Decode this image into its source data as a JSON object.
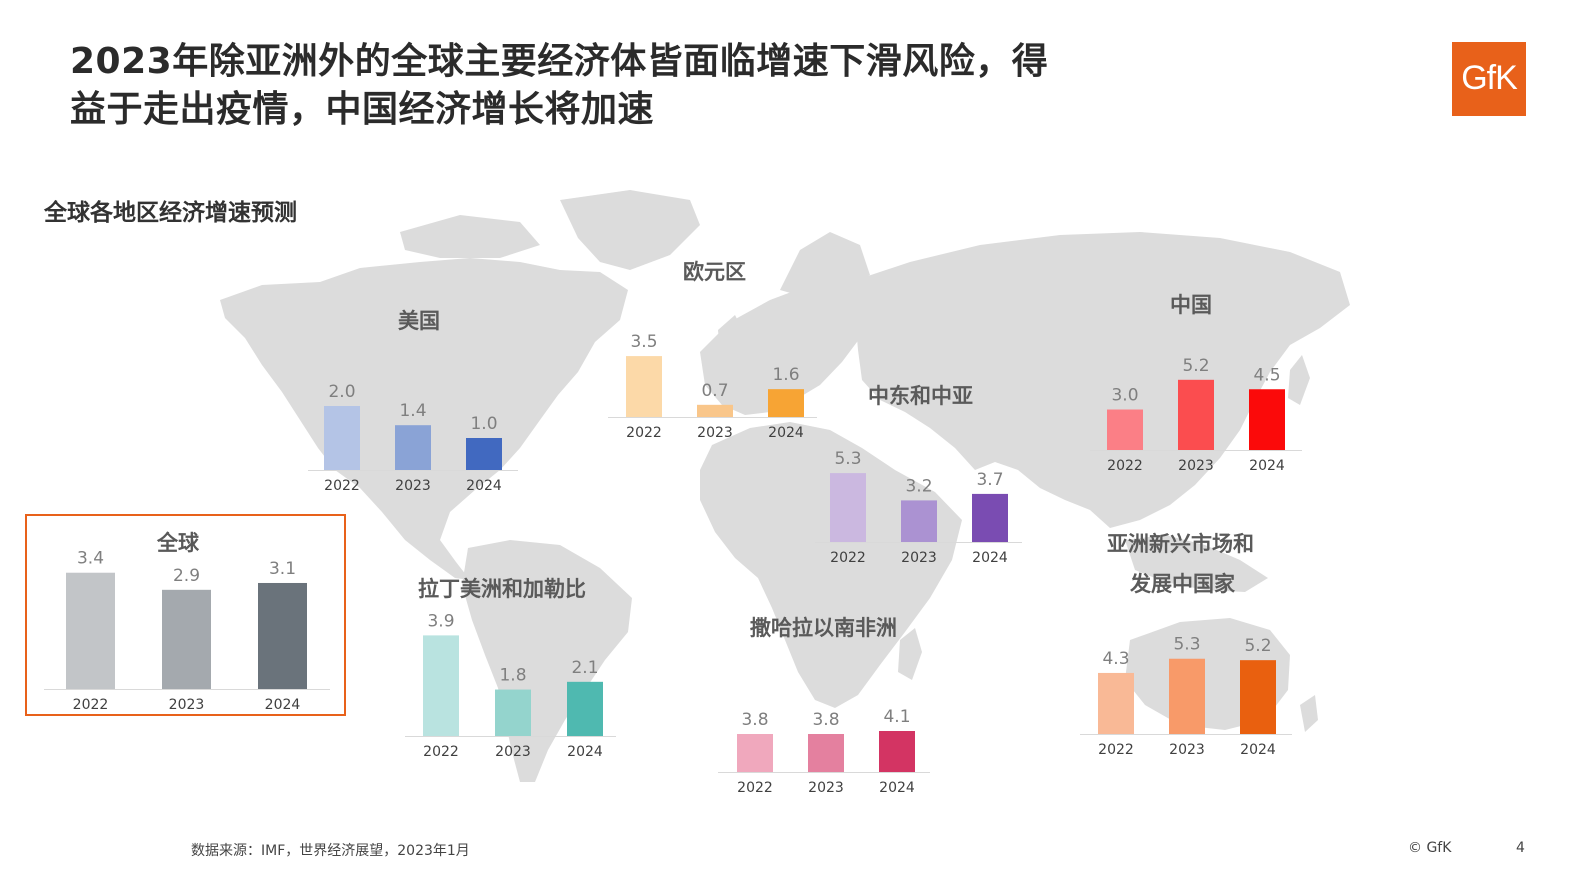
{
  "header": {
    "title_line1": "2023年除亚洲外的全球主要经济体皆面临增速下滑风险，得",
    "title_line2": "益于走出疫情，中国经济增长将加速",
    "logo_text": "GfK"
  },
  "subtitle": "全球各地区经济增速预测",
  "footer": {
    "source": "数据来源：IMF，世界经济展望，2023年1月",
    "copyright": "© GfK",
    "page_number": "4"
  },
  "chart_data": [
    {
      "id": "global",
      "type": "bar",
      "title": "全球",
      "categories": [
        "2022",
        "2023",
        "2024"
      ],
      "values": [
        3.4,
        2.9,
        3.1
      ],
      "labels": [
        "3.4",
        "2.9",
        "3.1"
      ],
      "colors": [
        "#c2c5c8",
        "#a4a9ae",
        "#6a737b"
      ]
    },
    {
      "id": "us",
      "type": "bar",
      "title": "美国",
      "categories": [
        "2022",
        "2023",
        "2024"
      ],
      "values": [
        2.0,
        1.4,
        1.0
      ],
      "labels": [
        "2.0",
        "1.4",
        "1.0"
      ],
      "colors": [
        "#b4c4e6",
        "#8aa3d6",
        "#4169c0"
      ]
    },
    {
      "id": "euro",
      "type": "bar",
      "title": "欧元区",
      "categories": [
        "2022",
        "2023",
        "2024"
      ],
      "values": [
        3.5,
        0.7,
        1.6
      ],
      "labels": [
        "3.5",
        "0.7",
        "1.6"
      ],
      "colors": [
        "#fcd9a8",
        "#f9c68a",
        "#f7a434"
      ]
    },
    {
      "id": "mideast",
      "type": "bar",
      "title": "中东和中亚",
      "categories": [
        "2022",
        "2023",
        "2024"
      ],
      "values": [
        5.3,
        3.2,
        3.7
      ],
      "labels": [
        "5.3",
        "3.2",
        "3.7"
      ],
      "colors": [
        "#cbb8e0",
        "#ab92d2",
        "#7a4cb2"
      ]
    },
    {
      "id": "china",
      "type": "bar",
      "title": "中国",
      "categories": [
        "2022",
        "2023",
        "2024"
      ],
      "values": [
        3.0,
        5.2,
        4.5
      ],
      "labels": [
        "3.0",
        "5.2",
        "4.5"
      ],
      "colors": [
        "#fb7f86",
        "#fb4d4f",
        "#fb0a0a"
      ]
    },
    {
      "id": "latam",
      "type": "bar",
      "title": "拉丁美洲和加勒比",
      "categories": [
        "2022",
        "2023",
        "2024"
      ],
      "values": [
        3.9,
        1.8,
        2.1
      ],
      "labels": [
        "3.9",
        "1.8",
        "2.1"
      ],
      "colors": [
        "#b9e3e0",
        "#94d4cd",
        "#4fb9b0"
      ]
    },
    {
      "id": "ssa",
      "type": "bar",
      "title": "撒哈拉以南非洲",
      "categories": [
        "2022",
        "2023",
        "2024"
      ],
      "values": [
        3.8,
        3.8,
        4.1
      ],
      "labels": [
        "3.8",
        "3.8",
        "4.1"
      ],
      "colors": [
        "#f0a8bd",
        "#e4809f",
        "#d33463"
      ]
    },
    {
      "id": "asia",
      "type": "bar",
      "title": "亚洲新兴市场和发展中国家",
      "title_lines": [
        "亚洲新兴市场和",
        "发展中国家"
      ],
      "categories": [
        "2022",
        "2023",
        "2024"
      ],
      "values": [
        4.3,
        5.3,
        5.2
      ],
      "labels": [
        "4.3",
        "5.3",
        "5.2"
      ],
      "colors": [
        "#f9b996",
        "#f89a69",
        "#e9600f"
      ]
    }
  ]
}
